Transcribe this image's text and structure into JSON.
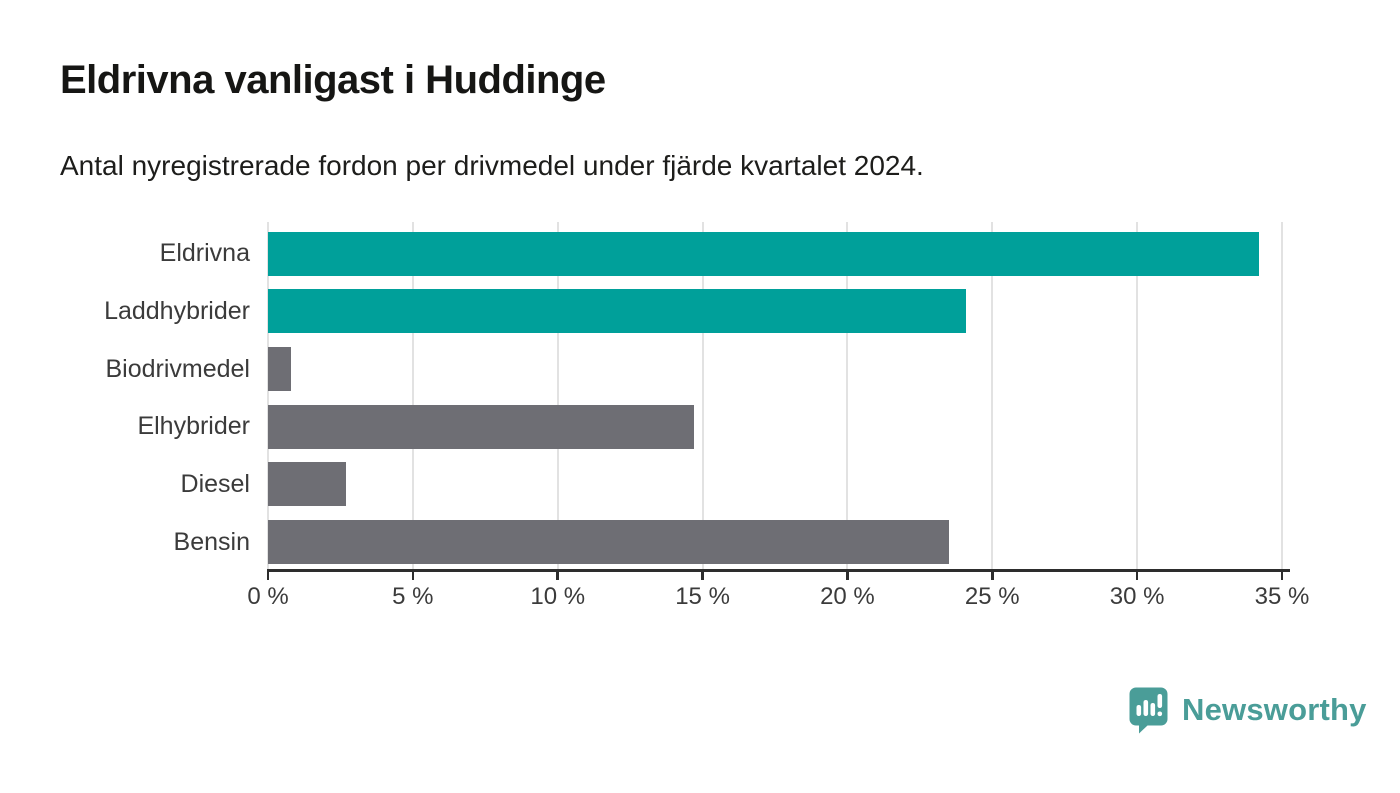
{
  "header": {
    "title": "Eldrivna vanligast i Huddinge",
    "subtitle": "Antal nyregistrerade fordon per drivmedel under fjärde kvartalet 2024."
  },
  "chart_data": {
    "type": "bar",
    "orientation": "horizontal",
    "title": "Eldrivna vanligast i Huddinge",
    "subtitle": "Antal nyregistrerade fordon per drivmedel under fjärde kvartalet 2024.",
    "categories": [
      "Eldrivna",
      "Laddhybrider",
      "Biodrivmedel",
      "Elhybrider",
      "Diesel",
      "Bensin"
    ],
    "values": [
      34.2,
      24.1,
      0.8,
      14.7,
      2.7,
      23.5
    ],
    "unit": "%",
    "xlabel": "",
    "ylabel": "",
    "xlim": [
      0,
      35
    ],
    "x_ticks": [
      0,
      5,
      10,
      15,
      20,
      25,
      30,
      35
    ],
    "x_tick_labels": [
      "0 %",
      "5 %",
      "10 %",
      "15 %",
      "20 %",
      "25 %",
      "30 %",
      "35 %"
    ],
    "bar_colors": [
      "#00a09a",
      "#00a09a",
      "#6e6e74",
      "#6e6e74",
      "#6e6e74",
      "#6e6e74"
    ],
    "grid": true,
    "legend": "none"
  },
  "colors": {
    "highlight_teal": "#00a09a",
    "neutral_gray": "#6e6e74",
    "gridline": "#e2e2e2",
    "axis": "#2d2d2d",
    "text": "#3b3b3b"
  },
  "branding": {
    "logo_text": "Newsworthy",
    "logo_color": "#4a9d98"
  }
}
